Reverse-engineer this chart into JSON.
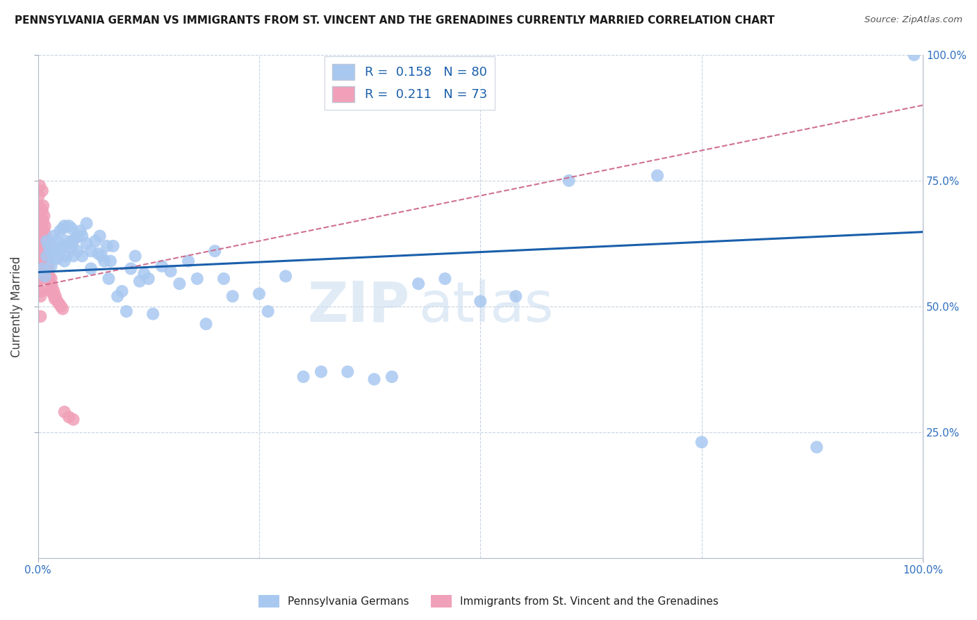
{
  "title": "PENNSYLVANIA GERMAN VS IMMIGRANTS FROM ST. VINCENT AND THE GRENADINES CURRENTLY MARRIED CORRELATION CHART",
  "source": "Source: ZipAtlas.com",
  "ylabel": "Currently Married",
  "R_blue": 0.158,
  "N_blue": 80,
  "R_pink": 0.211,
  "N_pink": 73,
  "legend_blue": "Pennsylvania Germans",
  "legend_pink": "Immigrants from St. Vincent and the Grenadines",
  "blue_color": "#A8C8F0",
  "pink_color": "#F0A0B8",
  "trend_blue_color": "#1A5FAB",
  "trend_pink_color": "#D07090",
  "watermark_zip": "ZIP",
  "watermark_atlas": "atlas",
  "blue_x": [
    0.005,
    0.008,
    0.01,
    0.01,
    0.012,
    0.015,
    0.015,
    0.018,
    0.018,
    0.02,
    0.022,
    0.022,
    0.025,
    0.025,
    0.028,
    0.028,
    0.03,
    0.03,
    0.032,
    0.032,
    0.035,
    0.035,
    0.038,
    0.038,
    0.04,
    0.04,
    0.042,
    0.045,
    0.045,
    0.048,
    0.05,
    0.05,
    0.055,
    0.055,
    0.06,
    0.06,
    0.065,
    0.068,
    0.07,
    0.072,
    0.075,
    0.078,
    0.08,
    0.082,
    0.085,
    0.09,
    0.095,
    0.1,
    0.105,
    0.11,
    0.115,
    0.12,
    0.125,
    0.13,
    0.14,
    0.15,
    0.16,
    0.17,
    0.18,
    0.19,
    0.2,
    0.21,
    0.22,
    0.25,
    0.26,
    0.28,
    0.3,
    0.32,
    0.35,
    0.38,
    0.4,
    0.43,
    0.46,
    0.5,
    0.54,
    0.6,
    0.7,
    0.75,
    0.88,
    0.99
  ],
  "blue_y": [
    0.575,
    0.56,
    0.63,
    0.6,
    0.62,
    0.61,
    0.58,
    0.64,
    0.595,
    0.615,
    0.63,
    0.595,
    0.65,
    0.61,
    0.655,
    0.62,
    0.66,
    0.59,
    0.63,
    0.6,
    0.66,
    0.625,
    0.655,
    0.615,
    0.63,
    0.6,
    0.635,
    0.64,
    0.61,
    0.65,
    0.64,
    0.6,
    0.665,
    0.625,
    0.61,
    0.575,
    0.63,
    0.605,
    0.64,
    0.6,
    0.59,
    0.62,
    0.555,
    0.59,
    0.62,
    0.52,
    0.53,
    0.49,
    0.575,
    0.6,
    0.55,
    0.565,
    0.555,
    0.485,
    0.58,
    0.57,
    0.545,
    0.59,
    0.555,
    0.465,
    0.61,
    0.555,
    0.52,
    0.525,
    0.49,
    0.56,
    0.36,
    0.37,
    0.37,
    0.355,
    0.36,
    0.545,
    0.555,
    0.51,
    0.52,
    0.75,
    0.76,
    0.23,
    0.22,
    1.0
  ],
  "pink_x": [
    0.001,
    0.001,
    0.001,
    0.001,
    0.001,
    0.001,
    0.001,
    0.001,
    0.001,
    0.002,
    0.002,
    0.002,
    0.002,
    0.002,
    0.002,
    0.002,
    0.003,
    0.003,
    0.003,
    0.003,
    0.003,
    0.003,
    0.003,
    0.003,
    0.004,
    0.004,
    0.004,
    0.004,
    0.004,
    0.004,
    0.005,
    0.005,
    0.005,
    0.005,
    0.005,
    0.005,
    0.006,
    0.006,
    0.006,
    0.006,
    0.007,
    0.007,
    0.007,
    0.007,
    0.008,
    0.008,
    0.008,
    0.009,
    0.009,
    0.009,
    0.01,
    0.01,
    0.01,
    0.011,
    0.011,
    0.012,
    0.012,
    0.013,
    0.014,
    0.015,
    0.015,
    0.016,
    0.017,
    0.018,
    0.019,
    0.02,
    0.022,
    0.024,
    0.026,
    0.028,
    0.03,
    0.035,
    0.04
  ],
  "pink_y": [
    0.655,
    0.63,
    0.615,
    0.68,
    0.7,
    0.72,
    0.61,
    0.58,
    0.555,
    0.74,
    0.695,
    0.665,
    0.64,
    0.605,
    0.57,
    0.53,
    0.695,
    0.67,
    0.65,
    0.62,
    0.59,
    0.56,
    0.52,
    0.48,
    0.66,
    0.635,
    0.615,
    0.585,
    0.555,
    0.53,
    0.73,
    0.69,
    0.66,
    0.625,
    0.595,
    0.56,
    0.7,
    0.67,
    0.64,
    0.61,
    0.68,
    0.65,
    0.62,
    0.59,
    0.66,
    0.63,
    0.6,
    0.64,
    0.61,
    0.58,
    0.62,
    0.595,
    0.565,
    0.6,
    0.575,
    0.58,
    0.555,
    0.56,
    0.545,
    0.555,
    0.53,
    0.54,
    0.525,
    0.53,
    0.515,
    0.52,
    0.51,
    0.505,
    0.5,
    0.495,
    0.29,
    0.28,
    0.275
  ],
  "trend_blue_start_y": 0.568,
  "trend_blue_end_y": 0.648,
  "trend_pink_start_y": 0.54,
  "trend_pink_end_y": 0.9,
  "xlim": [
    0.0,
    1.0
  ],
  "ylim": [
    0.0,
    1.0
  ],
  "grid_vals": [
    0.25,
    0.5,
    0.75,
    1.0
  ],
  "xtick_labels": [
    "0.0%",
    "100.0%"
  ],
  "xtick_positions": [
    0.0,
    1.0
  ],
  "ytick_labels": [
    "25.0%",
    "50.0%",
    "75.0%",
    "100.0%"
  ],
  "ytick_positions": [
    0.25,
    0.5,
    0.75,
    1.0
  ]
}
